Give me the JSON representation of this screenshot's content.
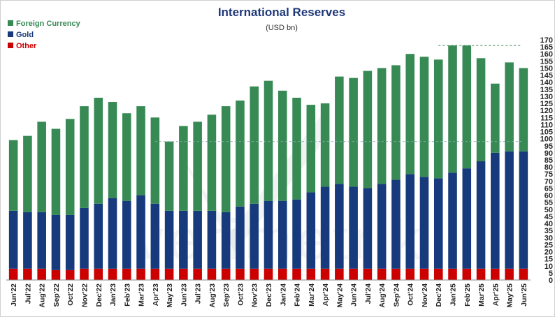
{
  "colors": {
    "foreign": "#388a55",
    "gold": "#173a7c",
    "other": "#cc0000",
    "refline": "#3d8a55",
    "title": "#1f3878",
    "watermark": "#c8ced6"
  },
  "chart_data": {
    "type": "bar",
    "stacked": true,
    "title": "International  Reserves",
    "subtitle": "(USD bn)",
    "watermark": "verimetrik",
    "legend_position": "top-left",
    "y_axis_side": "right",
    "ylim": [
      0,
      170
    ],
    "yticks": [
      0,
      5,
      10,
      15,
      20,
      25,
      30,
      35,
      40,
      45,
      50,
      55,
      60,
      65,
      70,
      75,
      80,
      85,
      90,
      95,
      100,
      105,
      110,
      115,
      120,
      125,
      130,
      135,
      140,
      145,
      150,
      155,
      160,
      165,
      170
    ],
    "reference_lines": [
      {
        "value": 166,
        "style": "dashed"
      },
      {
        "value": 98,
        "style": "dashed"
      }
    ],
    "categories": [
      "Jun'22",
      "Jul'22",
      "Aug'22",
      "Sep'22",
      "Oct'22",
      "Nov'22",
      "Dec'22",
      "Jan'23",
      "Feb'23",
      "Mar'23",
      "Apr'23",
      "May'23",
      "Jun'23",
      "Jul'23",
      "Aug'23",
      "Sep'23",
      "Oct'23",
      "Nov'23",
      "Dec'23",
      "Jan'24",
      "Feb'24",
      "Mar'24",
      "Apr'24",
      "May'24",
      "Jun'24",
      "Jul'24",
      "Aug'24",
      "Sep'24",
      "Oct'24",
      "Nov'24",
      "Dec'24",
      "Jan'25",
      "Feb'25",
      "Mar'25",
      "Apr'25",
      "May'25",
      "Jun'25"
    ],
    "legend_order": [
      "Foreign Currency",
      "Gold",
      "Other"
    ],
    "series": [
      {
        "name": "Other",
        "color_key": "other",
        "values": [
          8,
          8,
          8,
          7,
          7,
          8,
          8,
          8,
          8,
          8,
          8,
          8,
          8,
          8,
          8,
          8,
          8,
          8,
          8,
          8,
          8,
          8,
          8,
          8,
          8,
          8,
          8,
          8,
          8,
          8,
          8,
          8,
          8,
          8,
          8,
          8,
          8
        ]
      },
      {
        "name": "Gold",
        "color_key": "gold",
        "values": [
          41,
          40,
          40,
          39,
          39,
          43,
          46,
          50,
          48,
          52,
          46,
          41,
          41,
          41,
          41,
          40,
          44,
          46,
          48,
          48,
          49,
          54,
          58,
          60,
          58,
          57,
          60,
          63,
          67,
          65,
          64,
          68,
          71,
          76,
          82,
          83,
          83
        ]
      },
      {
        "name": "Foreign Currency",
        "color_key": "foreign",
        "values": [
          50,
          54,
          64,
          61,
          68,
          72,
          75,
          68,
          62,
          63,
          61,
          49,
          60,
          63,
          68,
          75,
          75,
          83,
          85,
          78,
          72,
          62,
          59,
          76,
          77,
          83,
          82,
          81,
          85,
          85,
          84,
          90,
          87,
          73,
          49,
          63,
          59
        ]
      }
    ]
  }
}
